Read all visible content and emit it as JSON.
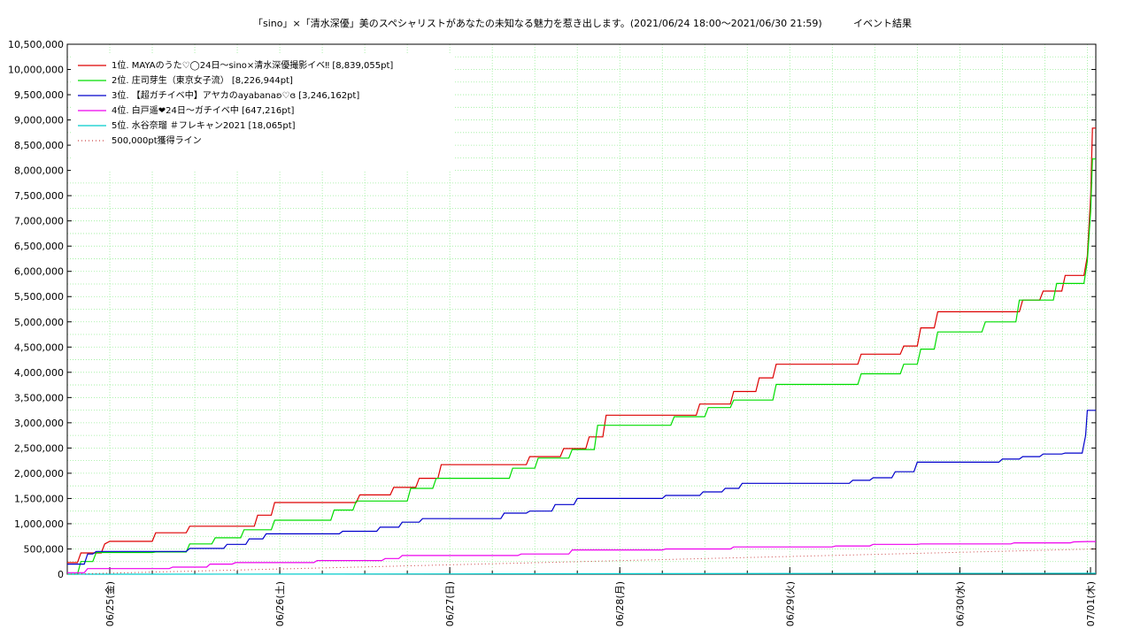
{
  "chart_data": {
    "type": "line",
    "title": "「sino」×「清水深優」美のスペシャリストがあなたの未知なる魅力を惹き出します。(2021/06/24 18:00〜2021/06/30 21:59)",
    "subtitle": "イベント結果",
    "xlabel": "",
    "ylabel": "",
    "ylim": [
      0,
      10500000
    ],
    "xlim": [
      0,
      6.05
    ],
    "grid": true,
    "legend_position": "top-left",
    "x_ticks": [
      {
        "x": 0.25,
        "label": "06/25(金)"
      },
      {
        "x": 1.25,
        "label": "06/26(土)"
      },
      {
        "x": 2.25,
        "label": "06/27(日)"
      },
      {
        "x": 3.25,
        "label": "06/28(月)"
      },
      {
        "x": 4.25,
        "label": "06/29(火)"
      },
      {
        "x": 5.25,
        "label": "06/30(水)"
      },
      {
        "x": 6.25,
        "label": "07/01(木)"
      }
    ],
    "y_ticks": [
      0,
      500000,
      1000000,
      1500000,
      2000000,
      2500000,
      3000000,
      3500000,
      4000000,
      4500000,
      5000000,
      5500000,
      6000000,
      6500000,
      7000000,
      7500000,
      8000000,
      8500000,
      9000000,
      9500000,
      10000000,
      10500000
    ],
    "y_tick_labels": [
      "0",
      "500,000",
      "1,000,000",
      "1,500,000",
      "2,000,000",
      "2,500,000",
      "3,000,000",
      "3,500,000",
      "4,000,000",
      "4,500,000",
      "5,000,000",
      "5,500,000",
      "6,000,000",
      "6,500,000",
      "7,000,000",
      "7,500,000",
      "8,000,000",
      "8,500,000",
      "9,000,000",
      "9,500,000",
      "10,000,000",
      "10,500,000"
    ],
    "series": [
      {
        "name": "1位. MAYAのうた♡◯24日〜sino×清水深優撮影イベ‼ [8,839,055pt]",
        "color": "#dd0000",
        "style": "step",
        "points": [
          [
            0.0,
            230000
          ],
          [
            0.06,
            230000
          ],
          [
            0.08,
            420000
          ],
          [
            0.2,
            420000
          ],
          [
            0.22,
            600000
          ],
          [
            0.25,
            650000
          ],
          [
            0.5,
            650000
          ],
          [
            0.52,
            820000
          ],
          [
            0.7,
            820000
          ],
          [
            0.72,
            950000
          ],
          [
            1.1,
            950000
          ],
          [
            1.12,
            1170000
          ],
          [
            1.2,
            1170000
          ],
          [
            1.22,
            1420000
          ],
          [
            1.7,
            1420000
          ],
          [
            1.72,
            1570000
          ],
          [
            1.9,
            1570000
          ],
          [
            1.92,
            1720000
          ],
          [
            2.05,
            1720000
          ],
          [
            2.07,
            1900000
          ],
          [
            2.18,
            1900000
          ],
          [
            2.2,
            2170000
          ],
          [
            2.7,
            2170000
          ],
          [
            2.72,
            2330000
          ],
          [
            2.9,
            2330000
          ],
          [
            2.92,
            2490000
          ],
          [
            3.05,
            2490000
          ],
          [
            3.07,
            2720000
          ],
          [
            3.15,
            2720000
          ],
          [
            3.17,
            3150000
          ],
          [
            3.7,
            3150000
          ],
          [
            3.72,
            3370000
          ],
          [
            3.9,
            3370000
          ],
          [
            3.92,
            3620000
          ],
          [
            4.05,
            3620000
          ],
          [
            4.07,
            3890000
          ],
          [
            4.15,
            3890000
          ],
          [
            4.17,
            4160000
          ],
          [
            4.65,
            4160000
          ],
          [
            4.67,
            4360000
          ],
          [
            4.9,
            4360000
          ],
          [
            4.92,
            4520000
          ],
          [
            5.0,
            4520000
          ],
          [
            5.02,
            4880000
          ],
          [
            5.1,
            4880000
          ],
          [
            5.12,
            5200000
          ],
          [
            5.6,
            5200000
          ],
          [
            5.62,
            5430000
          ],
          [
            5.72,
            5430000
          ],
          [
            5.74,
            5610000
          ],
          [
            5.85,
            5610000
          ],
          [
            5.87,
            5920000
          ],
          [
            5.98,
            5920000
          ],
          [
            6.0,
            6300000
          ],
          [
            6.02,
            7500000
          ],
          [
            6.03,
            8839055
          ],
          [
            6.05,
            8839055
          ]
        ]
      },
      {
        "name": "2位. 庄司芽生（東京女子流） [8,226,944pt]",
        "color": "#00dd00",
        "style": "step",
        "points": [
          [
            0.0,
            0
          ],
          [
            0.06,
            0
          ],
          [
            0.08,
            250000
          ],
          [
            0.15,
            250000
          ],
          [
            0.17,
            430000
          ],
          [
            0.5,
            430000
          ],
          [
            0.52,
            440000
          ],
          [
            0.7,
            440000
          ],
          [
            0.72,
            600000
          ],
          [
            0.85,
            600000
          ],
          [
            0.87,
            720000
          ],
          [
            1.02,
            720000
          ],
          [
            1.04,
            880000
          ],
          [
            1.2,
            880000
          ],
          [
            1.22,
            1070000
          ],
          [
            1.55,
            1070000
          ],
          [
            1.57,
            1270000
          ],
          [
            1.68,
            1270000
          ],
          [
            1.7,
            1450000
          ],
          [
            2.0,
            1450000
          ],
          [
            2.02,
            1700000
          ],
          [
            2.15,
            1700000
          ],
          [
            2.17,
            1900000
          ],
          [
            2.6,
            1900000
          ],
          [
            2.62,
            2100000
          ],
          [
            2.75,
            2100000
          ],
          [
            2.77,
            2300000
          ],
          [
            2.95,
            2300000
          ],
          [
            2.97,
            2470000
          ],
          [
            3.1,
            2470000
          ],
          [
            3.12,
            2950000
          ],
          [
            3.55,
            2950000
          ],
          [
            3.57,
            3120000
          ],
          [
            3.75,
            3120000
          ],
          [
            3.77,
            3300000
          ],
          [
            3.9,
            3300000
          ],
          [
            3.92,
            3450000
          ],
          [
            4.15,
            3450000
          ],
          [
            4.17,
            3760000
          ],
          [
            4.65,
            3760000
          ],
          [
            4.67,
            3970000
          ],
          [
            4.9,
            3970000
          ],
          [
            4.92,
            4160000
          ],
          [
            5.0,
            4160000
          ],
          [
            5.02,
            4460000
          ],
          [
            5.1,
            4460000
          ],
          [
            5.12,
            4800000
          ],
          [
            5.38,
            4800000
          ],
          [
            5.4,
            5000000
          ],
          [
            5.58,
            5000000
          ],
          [
            5.6,
            5430000
          ],
          [
            5.8,
            5430000
          ],
          [
            5.82,
            5760000
          ],
          [
            5.98,
            5760000
          ],
          [
            6.0,
            6200000
          ],
          [
            6.02,
            7200000
          ],
          [
            6.03,
            8226944
          ],
          [
            6.05,
            8226944
          ]
        ]
      },
      {
        "name": "3位. 【超ガチイベ中】アヤカのayabanaʚ♡ɞ [3,246,162pt]",
        "color": "#0000cc",
        "style": "step",
        "points": [
          [
            0.0,
            200000
          ],
          [
            0.1,
            200000
          ],
          [
            0.12,
            400000
          ],
          [
            0.15,
            400000
          ],
          [
            0.17,
            450000
          ],
          [
            0.7,
            450000
          ],
          [
            0.72,
            510000
          ],
          [
            0.92,
            510000
          ],
          [
            0.94,
            590000
          ],
          [
            1.05,
            590000
          ],
          [
            1.07,
            700000
          ],
          [
            1.15,
            700000
          ],
          [
            1.17,
            800000
          ],
          [
            1.6,
            800000
          ],
          [
            1.62,
            850000
          ],
          [
            1.82,
            850000
          ],
          [
            1.84,
            930000
          ],
          [
            1.95,
            930000
          ],
          [
            1.97,
            1030000
          ],
          [
            2.07,
            1030000
          ],
          [
            2.09,
            1100000
          ],
          [
            2.55,
            1100000
          ],
          [
            2.57,
            1210000
          ],
          [
            2.7,
            1210000
          ],
          [
            2.72,
            1250000
          ],
          [
            2.85,
            1250000
          ],
          [
            2.87,
            1380000
          ],
          [
            2.98,
            1380000
          ],
          [
            3.0,
            1500000
          ],
          [
            3.5,
            1500000
          ],
          [
            3.52,
            1560000
          ],
          [
            3.72,
            1560000
          ],
          [
            3.74,
            1630000
          ],
          [
            3.85,
            1630000
          ],
          [
            3.87,
            1700000
          ],
          [
            3.95,
            1700000
          ],
          [
            3.97,
            1800000
          ],
          [
            4.6,
            1800000
          ],
          [
            4.62,
            1860000
          ],
          [
            4.72,
            1860000
          ],
          [
            4.74,
            1910000
          ],
          [
            4.85,
            1910000
          ],
          [
            4.87,
            2030000
          ],
          [
            4.98,
            2030000
          ],
          [
            5.0,
            2220000
          ],
          [
            5.48,
            2220000
          ],
          [
            5.5,
            2280000
          ],
          [
            5.6,
            2280000
          ],
          [
            5.62,
            2330000
          ],
          [
            5.72,
            2330000
          ],
          [
            5.74,
            2380000
          ],
          [
            5.85,
            2380000
          ],
          [
            5.87,
            2400000
          ],
          [
            5.97,
            2400000
          ],
          [
            5.99,
            2750000
          ],
          [
            6.0,
            3246162
          ],
          [
            6.05,
            3246162
          ]
        ]
      },
      {
        "name": "4位. 白戸遥❤24日〜ガチイベ中 [647,216pt]",
        "color": "#ee00ee",
        "style": "step",
        "points": [
          [
            0.0,
            30000
          ],
          [
            0.1,
            30000
          ],
          [
            0.12,
            110000
          ],
          [
            0.6,
            110000
          ],
          [
            0.62,
            140000
          ],
          [
            0.82,
            140000
          ],
          [
            0.84,
            200000
          ],
          [
            0.97,
            200000
          ],
          [
            0.99,
            230000
          ],
          [
            1.45,
            230000
          ],
          [
            1.47,
            270000
          ],
          [
            1.85,
            270000
          ],
          [
            1.87,
            310000
          ],
          [
            1.95,
            310000
          ],
          [
            1.97,
            370000
          ],
          [
            2.65,
            370000
          ],
          [
            2.67,
            400000
          ],
          [
            2.95,
            400000
          ],
          [
            2.97,
            480000
          ],
          [
            3.5,
            480000
          ],
          [
            3.52,
            500000
          ],
          [
            3.9,
            500000
          ],
          [
            3.92,
            540000
          ],
          [
            4.5,
            540000
          ],
          [
            4.52,
            560000
          ],
          [
            4.72,
            560000
          ],
          [
            4.74,
            590000
          ],
          [
            5.0,
            590000
          ],
          [
            5.02,
            600000
          ],
          [
            5.55,
            600000
          ],
          [
            5.57,
            620000
          ],
          [
            5.9,
            620000
          ],
          [
            5.92,
            640000
          ],
          [
            6.0,
            647216
          ],
          [
            6.05,
            647216
          ]
        ]
      },
      {
        "name": "5位. 水谷奈瑠 ＃フレキャン2021 [18,065pt]",
        "color": "#00cccc",
        "style": "step",
        "points": [
          [
            0.0,
            0
          ],
          [
            1.5,
            2000
          ],
          [
            3.0,
            8000
          ],
          [
            4.5,
            14000
          ],
          [
            6.05,
            18065
          ]
        ]
      },
      {
        "name": "500,000pt獲得ライン",
        "color": "#cc4444",
        "style": "dotted",
        "points": [
          [
            0.0,
            0
          ],
          [
            6.05,
            500000
          ]
        ]
      }
    ]
  }
}
